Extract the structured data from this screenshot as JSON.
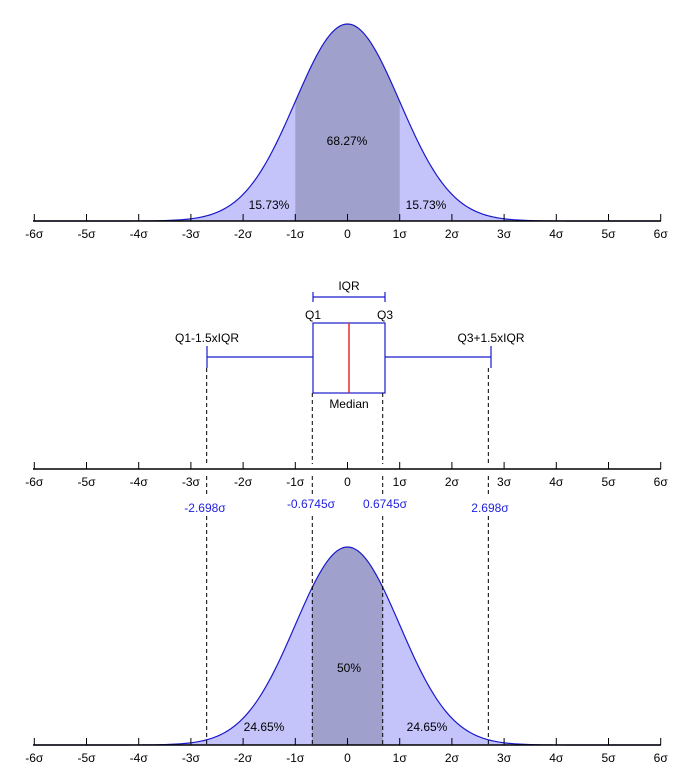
{
  "colors": {
    "curve": "#1a1acc",
    "fill_light": "#c4c4fa",
    "fill_dark": "#a0a0cc",
    "axis": "#000000",
    "box": "#1a1acc",
    "median": "#e02020",
    "quantile_label": "#1f1fe0",
    "dashed": "#000000"
  },
  "axis_ticks": [
    "-6σ",
    "-5σ",
    "-4σ",
    "-3σ",
    "-2σ",
    "-1σ",
    "0",
    "1σ",
    "2σ",
    "3σ",
    "4σ",
    "5σ",
    "6σ"
  ],
  "top_curve": {
    "center_label": "68.27%",
    "left_label": "15.73%",
    "right_label": "15.73%",
    "shaded_range": [
      -1,
      1
    ]
  },
  "boxplot": {
    "iqr_label": "IQR",
    "q1_label": "Q1",
    "q3_label": "Q3",
    "median_label": "Median",
    "lower_whisker_label": "Q1-1.5xIQR",
    "upper_whisker_label": "Q3+1.5xIQR",
    "q1": -0.6745,
    "q3": 0.6745,
    "median": 0,
    "lower_whisker": -2.698,
    "upper_whisker": 2.698
  },
  "quantile_labels": {
    "lower_whisker": "-2.698σ",
    "q1": "-0.6745σ",
    "q3": "0.6745σ",
    "upper_whisker": "2.698σ"
  },
  "bottom_curve": {
    "center_label": "50%",
    "left_label": "24.65%",
    "right_label": "24.65%",
    "shaded_range": [
      -0.6745,
      0.6745
    ]
  }
}
